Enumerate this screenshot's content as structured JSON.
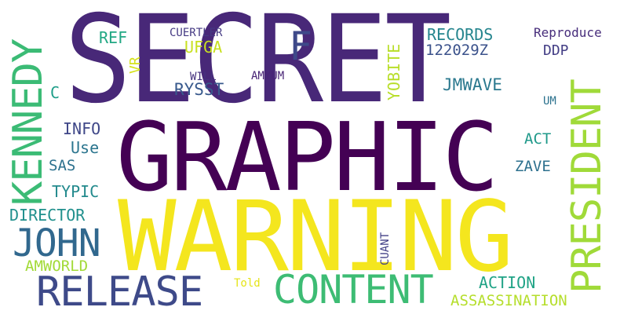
{
  "words": [
    {
      "text": "SECRET",
      "color": "#482878",
      "rotated": false
    },
    {
      "text": "GRAPHIC",
      "color": "#440154",
      "rotated": false
    },
    {
      "text": "WARNING",
      "color": "#f4e61e",
      "rotated": false
    },
    {
      "text": "KENNEDY",
      "color": "#3bbb75",
      "rotated": true
    },
    {
      "text": "JOHN",
      "color": "#31688e",
      "rotated": false
    },
    {
      "text": "RELEASE",
      "color": "#3e4a89",
      "rotated": false
    },
    {
      "text": "CONTENT",
      "color": "#3dbc74",
      "rotated": false
    },
    {
      "text": "PRESIDENT",
      "color": "#a0da39",
      "rotated": true
    },
    {
      "text": "ASSASSINATION",
      "color": "#b5de2b",
      "rotated": false
    },
    {
      "text": "ACTION",
      "color": "#20a386",
      "rotated": false
    },
    {
      "text": "F",
      "color": "#3e4989",
      "rotated": false
    },
    {
      "text": "RECORDS",
      "color": "#25858e",
      "rotated": false
    },
    {
      "text": "122029Z",
      "color": "#3b528b",
      "rotated": false
    },
    {
      "text": "Reproduce",
      "color": "#472d7b",
      "rotated": false
    },
    {
      "text": "DDP",
      "color": "#433e85",
      "rotated": false
    },
    {
      "text": "JMWAVE",
      "color": "#2a788e",
      "rotated": false
    },
    {
      "text": "YOBITE",
      "color": "#b8de29",
      "rotated": true
    },
    {
      "text": "UM",
      "color": "#2c728e",
      "rotated": false
    },
    {
      "text": "ACT",
      "color": "#1f998a",
      "rotated": false
    },
    {
      "text": "ZAVE",
      "color": "#2d708e",
      "rotated": false
    },
    {
      "text": "REF",
      "color": "#22a884",
      "rotated": false
    },
    {
      "text": "UFGA",
      "color": "#c8e020",
      "rotated": false
    },
    {
      "text": "CUERTLER",
      "color": "#443983",
      "rotated": false
    },
    {
      "text": "VR",
      "color": "#d5e21a",
      "rotated": true
    },
    {
      "text": "WILL",
      "color": "#46327e",
      "rotated": false
    },
    {
      "text": "AMYUM",
      "color": "#482475",
      "rotated": false
    },
    {
      "text": "RYSST",
      "color": "#38598c",
      "rotated": false
    },
    {
      "text": "C",
      "color": "#1f9e89",
      "rotated": false
    },
    {
      "text": "INFO",
      "color": "#3f4788",
      "rotated": false
    },
    {
      "text": "Use",
      "color": "#2b758e",
      "rotated": false
    },
    {
      "text": "SAS",
      "color": "#2c718e",
      "rotated": false
    },
    {
      "text": "TYPIC",
      "color": "#238a8d",
      "rotated": false
    },
    {
      "text": "DIRECTOR",
      "color": "#21908d",
      "rotated": false
    },
    {
      "text": "AMWORLD",
      "color": "#a2da37",
      "rotated": false
    },
    {
      "text": "Told",
      "color": "#e5e419",
      "rotated": false
    },
    {
      "text": "CUANT",
      "color": "#424086",
      "rotated": true
    }
  ]
}
